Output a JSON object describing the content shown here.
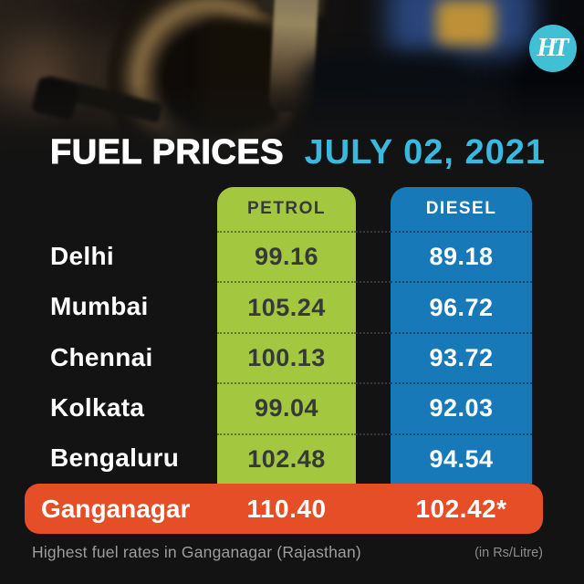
{
  "brand": {
    "logo_text": "HT"
  },
  "header": {
    "title": "FUEL PRICES",
    "date": "JULY 02, 2021"
  },
  "table": {
    "columns": [
      {
        "label": "PETROL"
      },
      {
        "label": "DIESEL"
      }
    ],
    "rows": [
      {
        "city": "Delhi",
        "petrol": "99.16",
        "diesel": "89.18"
      },
      {
        "city": "Mumbai",
        "petrol": "105.24",
        "diesel": "96.72"
      },
      {
        "city": "Chennai",
        "petrol": "100.13",
        "diesel": "93.72"
      },
      {
        "city": "Kolkata",
        "petrol": "99.04",
        "diesel": "92.03"
      },
      {
        "city": "Bengaluru",
        "petrol": "102.48",
        "diesel": "94.54"
      }
    ],
    "highlight": {
      "city": "Ganganagar",
      "petrol": "110.40",
      "diesel": "102.42*"
    }
  },
  "footer": {
    "note": "Highest fuel rates in Ganganagar (Rajasthan)",
    "unit": "(in Rs/Litre)"
  },
  "colors": {
    "background": "#131313",
    "petrol_green": "#a3c73f",
    "diesel_blue": "#1879b8",
    "highlight_orange": "#e54e26",
    "accent_cyan": "#38b9de",
    "logo_teal": "#41c0d5",
    "petrol_text": "#36393a",
    "city_text": "#ffffff",
    "footer_gray": "#9d9d9d"
  }
}
